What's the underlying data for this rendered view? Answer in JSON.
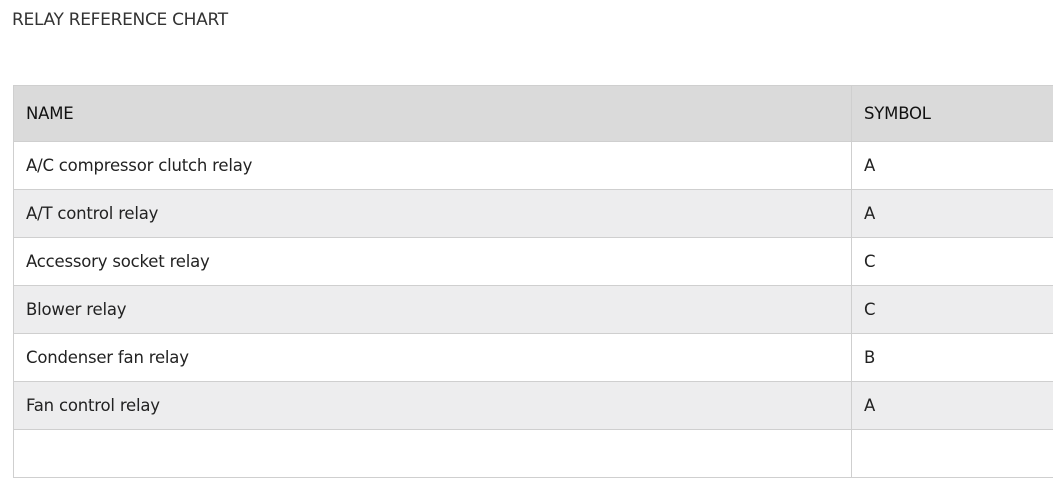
{
  "title": "RELAY REFERENCE CHART",
  "table": {
    "headers": [
      "NAME",
      "SYMBOL"
    ],
    "rows": [
      [
        "A/C compressor clutch relay",
        "A"
      ],
      [
        "A/T control relay",
        "A"
      ],
      [
        "Accessory socket relay",
        "C"
      ],
      [
        "Blower relay",
        "C"
      ],
      [
        "Condenser fan relay",
        "B"
      ],
      [
        "Fan control relay",
        "A"
      ]
    ]
  },
  "colors": {
    "header_bg": "#dadada",
    "alt_row_bg": "#ededee",
    "border": "#cfcfcf"
  }
}
